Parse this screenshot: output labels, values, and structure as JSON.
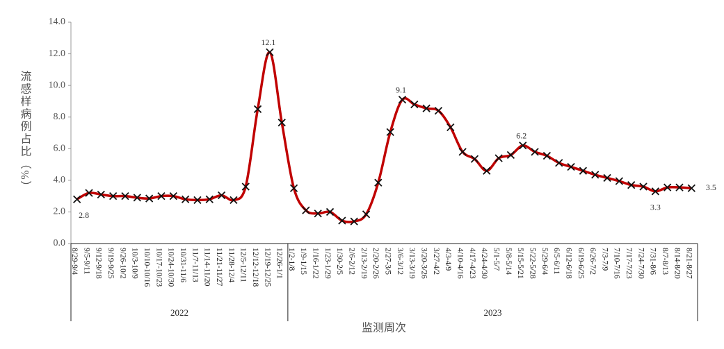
{
  "chart_data": {
    "type": "line",
    "y_label": "流感样病例占比（%）",
    "x_label": "监测周次",
    "categories": [
      "8/29-9/4",
      "9/5-9/11",
      "9/12-9/18",
      "9/19-9/25",
      "9/26-10/2",
      "10/3-10/9",
      "10/10-10/16",
      "10/17-10/23",
      "10/24-10/30",
      "10/31-11/6",
      "11/7-11/13",
      "11/14-11/20",
      "11/21-11/27",
      "11/28-12/4",
      "12/5-12/11",
      "12/12-12/18",
      "12/19-12/25",
      "12/26-1/1",
      "1/2-1/8",
      "1/9-1/15",
      "1/16-1/22",
      "1/23-1/29",
      "1/30-2/5",
      "2/6-2/12",
      "2/13-2/19",
      "2/20-2/26",
      "2/27-3/5",
      "3/6-3/12",
      "3/13-3/19",
      "3/20-3/26",
      "3/27-4/2",
      "4/3-4/9",
      "4/10-4/16",
      "4/17-4/23",
      "4/24-4/30",
      "5/1-5/7",
      "5/8-5/14",
      "5/15-5/21",
      "5/22-5/28",
      "5/29-6/4",
      "6/5-6/11",
      "6/12-6/18",
      "6/19-6/25",
      "6/26-7/2",
      "7/3-7/9",
      "7/10-7/16",
      "7/17-7/23",
      "7/24-7/30",
      "7/31-8/6",
      "8/7-8/13",
      "8/14-8/20",
      "8/21-8/27"
    ],
    "groups": [
      {
        "label": "2022",
        "count": 18
      },
      {
        "label": "2023",
        "count": 34
      }
    ],
    "values": [
      2.8,
      3.2,
      3.1,
      3.0,
      3.0,
      2.9,
      2.85,
      3.0,
      3.0,
      2.8,
      2.75,
      2.8,
      3.05,
      2.75,
      3.6,
      8.5,
      12.1,
      7.65,
      3.5,
      2.1,
      1.9,
      2.0,
      1.45,
      1.4,
      1.85,
      3.85,
      7.05,
      9.1,
      8.8,
      8.55,
      8.4,
      7.35,
      5.8,
      5.35,
      4.6,
      5.4,
      5.6,
      6.2,
      5.8,
      5.55,
      5.1,
      4.85,
      4.6,
      4.35,
      4.15,
      3.95,
      3.7,
      3.6,
      3.3,
      3.55,
      3.55,
      3.5
    ],
    "value_labels": [
      "2.8",
      null,
      null,
      null,
      null,
      null,
      null,
      null,
      null,
      null,
      null,
      null,
      null,
      null,
      null,
      null,
      "12.1",
      null,
      null,
      null,
      null,
      null,
      null,
      null,
      null,
      null,
      null,
      "9.1",
      null,
      null,
      null,
      null,
      null,
      null,
      null,
      null,
      null,
      "6.2",
      null,
      null,
      null,
      null,
      null,
      null,
      null,
      null,
      null,
      null,
      "3.3",
      null,
      null,
      "3.5"
    ],
    "color": "#c00000",
    "marker_color": "#111111",
    "ylim": [
      0,
      14
    ],
    "yticks": [
      {
        "value": 0,
        "label": "0.0"
      },
      {
        "value": 2,
        "label": "2.0"
      },
      {
        "value": 4,
        "label": "4.0"
      },
      {
        "value": 6,
        "label": "6.0"
      },
      {
        "value": 8,
        "label": "8.0"
      },
      {
        "value": 10,
        "label": "10.0"
      },
      {
        "value": 12,
        "label": "12.0"
      },
      {
        "value": 14,
        "label": "14.0"
      }
    ]
  }
}
